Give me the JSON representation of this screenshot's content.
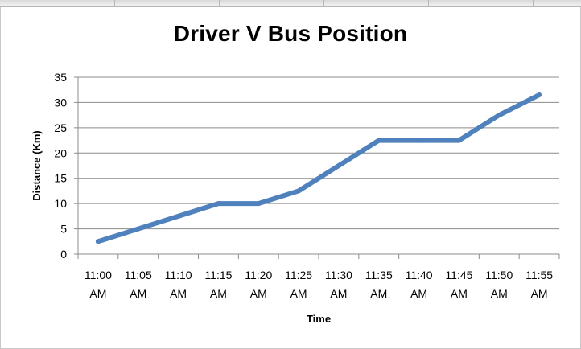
{
  "chart_data": {
    "type": "line",
    "title": "Driver V Bus Position",
    "xlabel": "Time",
    "ylabel": "Distance (Km)",
    "ylim": [
      0,
      35
    ],
    "y_ticks": [
      "0",
      "5",
      "10",
      "15",
      "20",
      "25",
      "30",
      "35"
    ],
    "categories": [
      [
        "11:00",
        "AM"
      ],
      [
        "11:05",
        "AM"
      ],
      [
        "11:10",
        "AM"
      ],
      [
        "11:15",
        "AM"
      ],
      [
        "11:20",
        "AM"
      ],
      [
        "11:25",
        "AM"
      ],
      [
        "11:30",
        "AM"
      ],
      [
        "11:35",
        "AM"
      ],
      [
        "11:40",
        "AM"
      ],
      [
        "11:45",
        "AM"
      ],
      [
        "11:50",
        "AM"
      ],
      [
        "11:55",
        "AM"
      ]
    ],
    "series": [
      {
        "values": [
          2.5,
          5,
          7.5,
          10,
          10,
          12.5,
          17.5,
          22.5,
          22.5,
          22.5,
          27.5,
          31.5
        ]
      }
    ],
    "grid": true,
    "legend": "none",
    "line_color": "#4f81bd"
  }
}
